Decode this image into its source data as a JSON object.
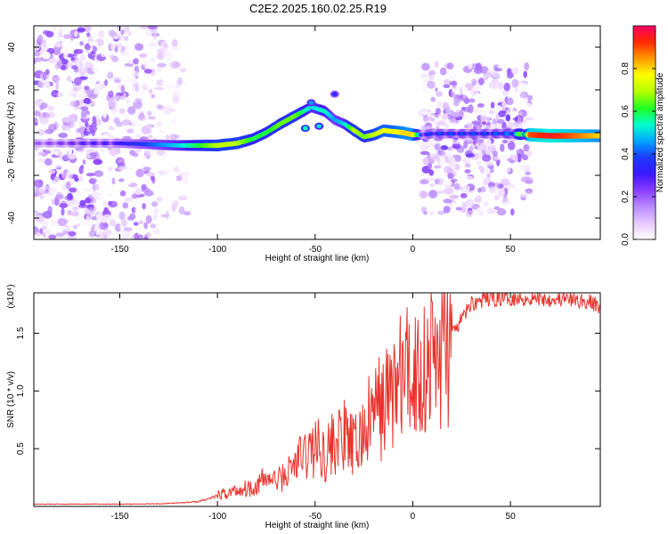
{
  "title": "C2E2.2025.160.02.25.R19",
  "colors": {
    "snr_line": "#e8332c",
    "axis": "#000000",
    "colormap": [
      "#ffffff",
      "#e6c8ff",
      "#b98aff",
      "#8a3cff",
      "#3b18ff",
      "#1a3cff",
      "#00a8ff",
      "#00ffcc",
      "#22ff22",
      "#b4ff00",
      "#ffff00",
      "#ff9a00",
      "#ff2a00",
      "#ff0066"
    ]
  },
  "chart_data": [
    {
      "type": "heatmap",
      "xlabel": "Height of straight line (km)",
      "ylabel": "Frequency (Hz)",
      "xlim": [
        -194,
        96
      ],
      "ylim": [
        -50,
        50
      ],
      "xticks": [
        -150,
        -100,
        -50,
        0,
        50
      ],
      "yticks": [
        -40,
        -20,
        0,
        20,
        40
      ],
      "colorbar": {
        "label": "Normalized spectral amplitude",
        "range": [
          0,
          1
        ],
        "ticks": [
          "0.0",
          "0.2",
          "0.4",
          "0.6",
          "0.8"
        ]
      },
      "ridge": {
        "x": [
          -194,
          -165,
          -150,
          -135,
          -120,
          -100,
          -90,
          -82,
          -75,
          -68,
          -60,
          -52,
          -45,
          -40,
          -35,
          -30,
          -25,
          -20,
          -15,
          -10,
          -5,
          0,
          5,
          10,
          20,
          30,
          40,
          50,
          60,
          70,
          80,
          96
        ],
        "freq": [
          -5,
          -5,
          -5,
          -5.5,
          -6,
          -6,
          -5,
          -3,
          0,
          4,
          8,
          12,
          10,
          6,
          4,
          1,
          -2,
          -1,
          1,
          0.5,
          0,
          -1,
          -1,
          -0.5,
          -0.5,
          -0.5,
          -0.5,
          -0.5,
          -1,
          -1.5,
          -1.5,
          -1.5
        ],
        "amplitude": [
          0.2,
          0.3,
          0.3,
          0.4,
          0.5,
          0.7,
          0.7,
          0.6,
          0.6,
          0.65,
          0.65,
          0.5,
          0.55,
          0.45,
          0.5,
          0.7,
          0.65,
          0.7,
          0.75,
          0.75,
          0.8,
          0.8,
          0.35,
          0.4,
          0.4,
          0.4,
          0.4,
          0.45,
          0.9,
          0.95,
          0.9,
          0.8
        ]
      }
    },
    {
      "type": "line",
      "xlabel": "Height of straight line (km)",
      "ylabel": "SNR (10 * v/v)",
      "y_multiplier": "(x10⁴)",
      "xlim": [
        -194,
        96
      ],
      "ylim": [
        0,
        18500
      ],
      "xticks": [
        -150,
        -100,
        -50,
        0,
        50
      ],
      "yticks": [
        5000,
        10000,
        15000
      ],
      "ytick_labels": [
        "0.5",
        "1.0",
        "1.5"
      ],
      "series": [
        {
          "x": [
            -194,
            -160,
            -130,
            -110,
            -100,
            -90,
            -80,
            -75,
            -70,
            -65,
            -60,
            -55,
            -50,
            -45,
            -40,
            -35,
            -30,
            -25,
            -20,
            -15,
            -10,
            -5,
            0,
            5,
            10,
            15,
            20,
            25,
            30,
            40,
            50,
            60,
            70,
            80,
            90,
            96
          ],
          "y": [
            200,
            200,
            220,
            400,
            900,
            1400,
            1800,
            2500,
            2200,
            2700,
            3800,
            4500,
            5200,
            4600,
            5600,
            6000,
            5000,
            6400,
            8200,
            8800,
            10300,
            11300,
            11500,
            12000,
            12800,
            13600,
            14800,
            16200,
            17600,
            18000,
            18100,
            18000,
            18000,
            17900,
            17700,
            17300
          ]
        }
      ]
    }
  ]
}
